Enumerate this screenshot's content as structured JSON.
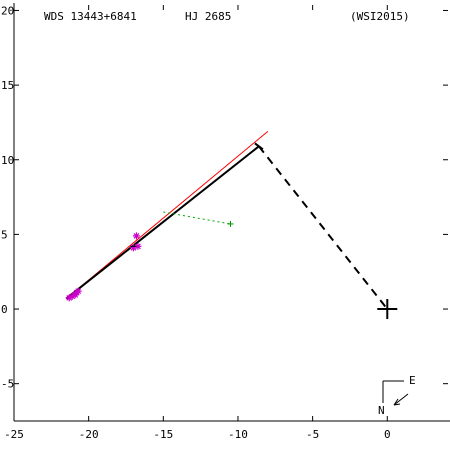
{
  "header": {
    "wds": "WDS 13443+6841",
    "name": "HJ 2685",
    "source": "(WSI2015)"
  },
  "orientation": {
    "east_label": "E",
    "north_label": "N"
  },
  "chart_data": {
    "type": "scatter",
    "title": "",
    "xlabel": "",
    "ylabel": "",
    "xlim": [
      -25,
      4.2
    ],
    "ylim": [
      -7.5,
      20.5
    ],
    "grid": false,
    "x_ticks": [
      -25,
      -20,
      -15,
      -10,
      -5,
      0
    ],
    "y_ticks": [
      -5,
      0,
      5,
      10,
      15,
      20
    ],
    "x_tick_labels": [
      "-25",
      "-20",
      "-15",
      "-10",
      "-5",
      "0"
    ],
    "y_tick_labels": [
      "-5",
      "0",
      "5",
      "10",
      "15",
      "20"
    ],
    "primary_position": {
      "x": 0,
      "y": 0
    },
    "orbit_arc": {
      "color": "#000000",
      "x": [
        -21.5,
        -8.6
      ],
      "y": [
        0.7,
        10.9
      ]
    },
    "fit_line": {
      "color": "#ff0000",
      "x": [
        -21.5,
        -8.0
      ],
      "y": [
        0.7,
        11.9
      ]
    },
    "periastron_link": {
      "color": "#000000",
      "style": "dashed",
      "x": [
        -8.6,
        0
      ],
      "y": [
        10.9,
        0
      ]
    },
    "residual_link": {
      "color": "#00aa00",
      "style": "dotted",
      "x": [
        -15.0,
        -10.5
      ],
      "y": [
        6.5,
        5.7
      ]
    },
    "observations": {
      "color": "#cc00cc",
      "marker": "asterisk",
      "x": [
        -21.3,
        -21.1,
        -20.9,
        -20.8,
        -20.7,
        -17.0,
        -16.8,
        -16.7
      ],
      "y": [
        0.75,
        0.85,
        0.95,
        1.1,
        1.2,
        4.1,
        4.9,
        4.2
      ]
    },
    "minor_point": {
      "color": "#009900",
      "marker": "plus",
      "x": -10.5,
      "y": 5.7
    },
    "central_obs": {
      "color": "#000000",
      "x": -17.0,
      "y": 4.2
    }
  }
}
